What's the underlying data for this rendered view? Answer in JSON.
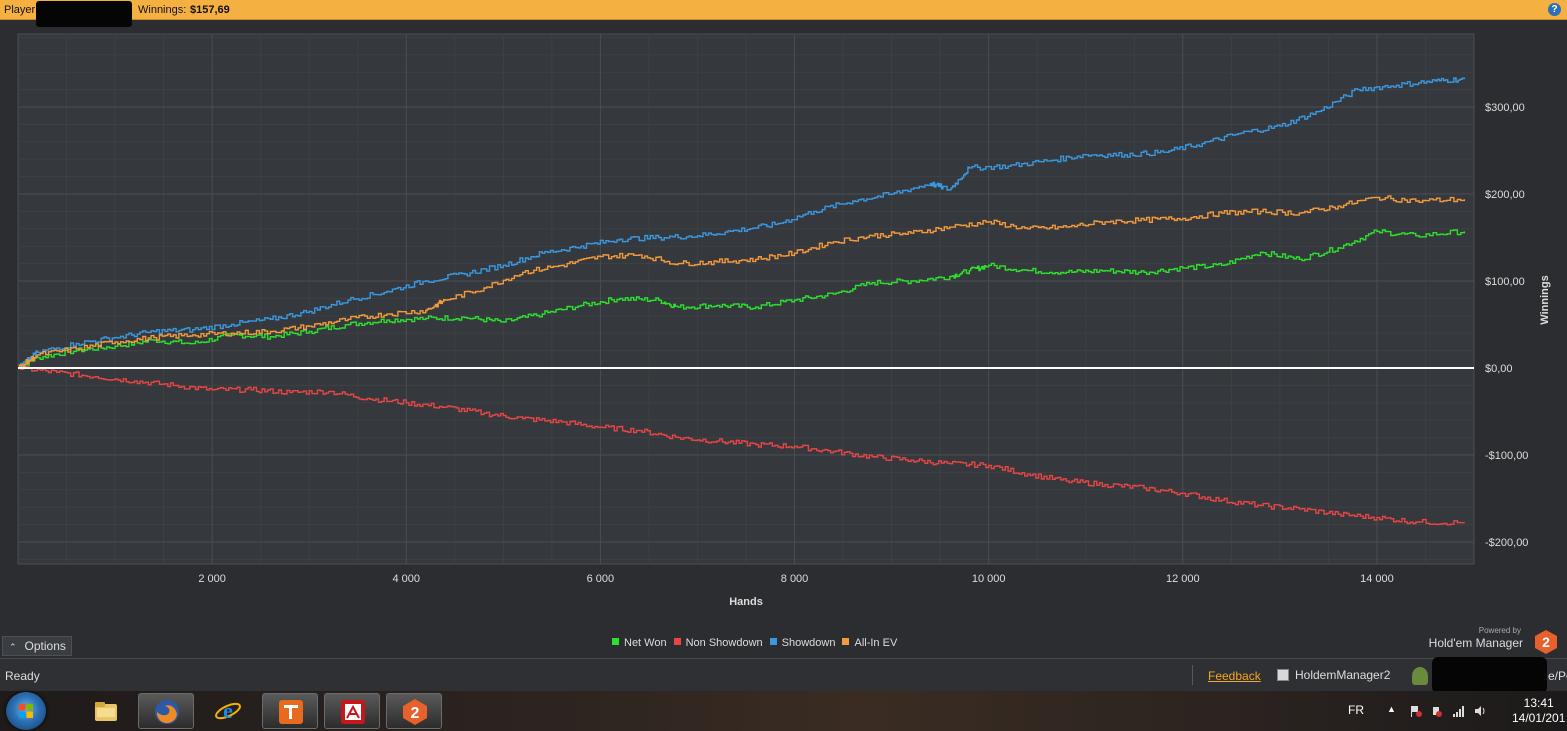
{
  "window": {
    "title_prefix": "Player:",
    "title_winnings_label": "Winnings:",
    "title_winnings_value": "$157,69",
    "help_icon": "help-icon"
  },
  "chart_data": {
    "type": "line",
    "title": "",
    "xlabel": "Hands",
    "ylabel": "Winnings",
    "xlim": [
      0,
      15000
    ],
    "ylim": [
      -230,
      380
    ],
    "x_ticks": [
      2000,
      4000,
      6000,
      8000,
      10000,
      12000,
      14000
    ],
    "x_tick_labels": [
      "2 000",
      "4 000",
      "6 000",
      "8 000",
      "10 000",
      "12 000",
      "14 000"
    ],
    "y_ticks": [
      300,
      200,
      100,
      0,
      -100,
      -200
    ],
    "y_tick_labels": [
      "$300,00",
      "$200,00",
      "$100,00",
      "$0,00",
      "-$100,00",
      "-$200,00"
    ],
    "grid": true,
    "zero_line": true,
    "legend_position": "bottom-center",
    "series": [
      {
        "name": "Net Won",
        "color": "#2ee02e",
        "points": [
          [
            0,
            0
          ],
          [
            200,
            12
          ],
          [
            600,
            20
          ],
          [
            1000,
            25
          ],
          [
            1400,
            32
          ],
          [
            1800,
            28
          ],
          [
            2200,
            38
          ],
          [
            2600,
            36
          ],
          [
            3000,
            42
          ],
          [
            3400,
            50
          ],
          [
            3800,
            55
          ],
          [
            4200,
            57
          ],
          [
            4600,
            58
          ],
          [
            5000,
            53
          ],
          [
            5400,
            62
          ],
          [
            5800,
            72
          ],
          [
            6200,
            80
          ],
          [
            6600,
            78
          ],
          [
            6800,
            70
          ],
          [
            7200,
            72
          ],
          [
            7600,
            70
          ],
          [
            8000,
            78
          ],
          [
            8400,
            85
          ],
          [
            8800,
            98
          ],
          [
            9200,
            100
          ],
          [
            9600,
            105
          ],
          [
            9800,
            112
          ],
          [
            10000,
            118
          ],
          [
            10400,
            112
          ],
          [
            10800,
            110
          ],
          [
            11200,
            112
          ],
          [
            11600,
            110
          ],
          [
            12000,
            115
          ],
          [
            12400,
            118
          ],
          [
            12800,
            133
          ],
          [
            13200,
            125
          ],
          [
            13600,
            138
          ],
          [
            14000,
            157
          ],
          [
            14400,
            152
          ],
          [
            14900,
            157
          ]
        ]
      },
      {
        "name": "Non Showdown",
        "color": "#e84545",
        "points": [
          [
            0,
            0
          ],
          [
            400,
            -5
          ],
          [
            800,
            -10
          ],
          [
            1200,
            -15
          ],
          [
            1600,
            -20
          ],
          [
            2000,
            -25
          ],
          [
            2400,
            -25
          ],
          [
            2800,
            -28
          ],
          [
            3200,
            -27
          ],
          [
            3600,
            -35
          ],
          [
            4000,
            -40
          ],
          [
            4400,
            -45
          ],
          [
            4800,
            -52
          ],
          [
            5200,
            -58
          ],
          [
            5600,
            -62
          ],
          [
            6000,
            -68
          ],
          [
            6400,
            -72
          ],
          [
            6800,
            -80
          ],
          [
            7200,
            -84
          ],
          [
            7600,
            -88
          ],
          [
            8000,
            -90
          ],
          [
            8400,
            -96
          ],
          [
            8800,
            -102
          ],
          [
            9200,
            -106
          ],
          [
            9600,
            -110
          ],
          [
            10000,
            -112
          ],
          [
            10400,
            -122
          ],
          [
            10800,
            -130
          ],
          [
            11200,
            -134
          ],
          [
            11600,
            -138
          ],
          [
            12000,
            -144
          ],
          [
            12400,
            -152
          ],
          [
            12800,
            -158
          ],
          [
            13200,
            -162
          ],
          [
            13600,
            -168
          ],
          [
            14000,
            -172
          ],
          [
            14400,
            -177
          ],
          [
            14900,
            -178
          ]
        ]
      },
      {
        "name": "Showdown",
        "color": "#3a98e0",
        "points": [
          [
            0,
            0
          ],
          [
            200,
            18
          ],
          [
            600,
            28
          ],
          [
            1000,
            35
          ],
          [
            1400,
            42
          ],
          [
            1800,
            44
          ],
          [
            2200,
            50
          ],
          [
            2600,
            56
          ],
          [
            3000,
            65
          ],
          [
            3400,
            78
          ],
          [
            3800,
            88
          ],
          [
            4200,
            100
          ],
          [
            4600,
            108
          ],
          [
            5000,
            118
          ],
          [
            5400,
            132
          ],
          [
            5800,
            140
          ],
          [
            6200,
            148
          ],
          [
            6600,
            150
          ],
          [
            7000,
            152
          ],
          [
            7400,
            158
          ],
          [
            7800,
            165
          ],
          [
            8200,
            180
          ],
          [
            8600,
            192
          ],
          [
            9000,
            200
          ],
          [
            9400,
            212
          ],
          [
            9600,
            205
          ],
          [
            9800,
            230
          ],
          [
            10200,
            232
          ],
          [
            10600,
            238
          ],
          [
            11000,
            245
          ],
          [
            11400,
            245
          ],
          [
            11800,
            248
          ],
          [
            12200,
            258
          ],
          [
            12600,
            270
          ],
          [
            13000,
            278
          ],
          [
            13400,
            295
          ],
          [
            13800,
            320
          ],
          [
            14200,
            325
          ],
          [
            14600,
            330
          ],
          [
            14900,
            332
          ]
        ]
      },
      {
        "name": "All-In EV",
        "color": "#f59a3c",
        "points": [
          [
            0,
            0
          ],
          [
            200,
            15
          ],
          [
            600,
            22
          ],
          [
            1000,
            30
          ],
          [
            1400,
            35
          ],
          [
            1800,
            38
          ],
          [
            2200,
            40
          ],
          [
            2600,
            42
          ],
          [
            3000,
            48
          ],
          [
            3400,
            56
          ],
          [
            3800,
            62
          ],
          [
            4200,
            66
          ],
          [
            4400,
            78
          ],
          [
            4800,
            92
          ],
          [
            5200,
            110
          ],
          [
            5600,
            118
          ],
          [
            6000,
            128
          ],
          [
            6400,
            130
          ],
          [
            6800,
            120
          ],
          [
            7200,
            122
          ],
          [
            7600,
            125
          ],
          [
            8000,
            132
          ],
          [
            8400,
            145
          ],
          [
            8800,
            152
          ],
          [
            9200,
            155
          ],
          [
            9600,
            162
          ],
          [
            10000,
            168
          ],
          [
            10400,
            160
          ],
          [
            10800,
            162
          ],
          [
            11200,
            168
          ],
          [
            11600,
            170
          ],
          [
            12000,
            172
          ],
          [
            12400,
            178
          ],
          [
            12800,
            180
          ],
          [
            13200,
            178
          ],
          [
            13600,
            186
          ],
          [
            14000,
            196
          ],
          [
            14400,
            192
          ],
          [
            14900,
            194
          ]
        ]
      }
    ]
  },
  "options": {
    "label": "Options"
  },
  "brand": {
    "powered_by": "Powered by",
    "name": "Hold'em Manager",
    "logo_text": "2"
  },
  "status": {
    "ready": "Ready",
    "feedback": "Feedback",
    "app": "HoldemManager2",
    "user_suffix": "e/Po"
  },
  "taskbar": {
    "apps": [
      "explorer",
      "firefox",
      "internet-explorer",
      "tracker",
      "adobe",
      "holdem-manager-2"
    ],
    "hm2_text": "2",
    "language": "FR",
    "time": "13:41",
    "date": "14/01/201"
  }
}
